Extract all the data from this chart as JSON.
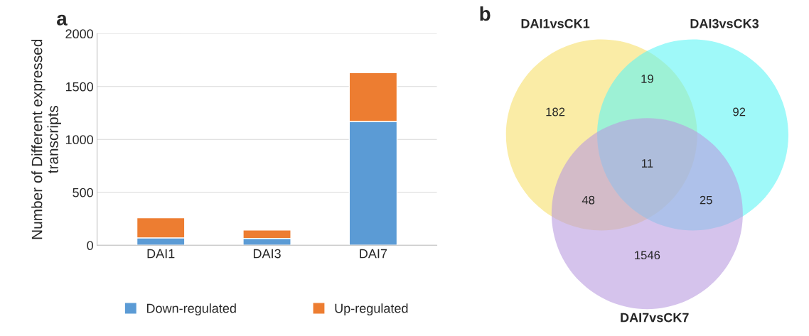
{
  "chart_data": [
    {
      "type": "bar",
      "ylabel": "Number of Different expressed\ntranscripts",
      "categories": [
        "DAI1",
        "DAI3",
        "DAI7"
      ],
      "stacked": true,
      "series": [
        {
          "name": "Down-regulated",
          "color": "#5b9bd5",
          "values": [
            70,
            65,
            1170
          ]
        },
        {
          "name": "Up-regulated",
          "color": "#ed7d31",
          "values": [
            190,
            80,
            460
          ]
        }
      ],
      "ylim": [
        0,
        2000
      ],
      "yticks": [
        0,
        500,
        1000,
        1500,
        2000
      ],
      "grid": "y",
      "legend": "bottom",
      "annotations": [
        "a"
      ]
    },
    {
      "type": "other",
      "categories": [
        "DAI1vsCK1",
        "DAI3vsCK3",
        "DAI7vsCK7"
      ],
      "colors": [
        "#f7e06b",
        "#5ff5f5",
        "#b99be0"
      ],
      "annotations": [
        "b",
        "182",
        "19",
        "92",
        "11",
        "48",
        "25",
        "1546"
      ]
    }
  ]
}
